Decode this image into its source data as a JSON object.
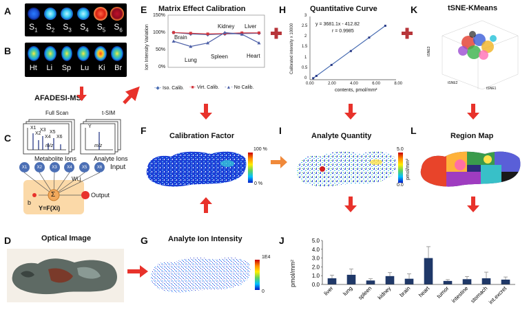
{
  "panels": {
    "A": {
      "label": "A",
      "samples": [
        "S1",
        "S2",
        "S3",
        "S4",
        "S5",
        "S6"
      ],
      "sub_letter": "S",
      "sub_numbers": [
        "1",
        "2",
        "3",
        "4",
        "5",
        "6"
      ]
    },
    "B": {
      "label": "B",
      "organs": [
        "Ht",
        "Li",
        "Sp",
        "Lu",
        "Ki",
        "Br"
      ]
    },
    "afadesi": "AFADESI-MSI",
    "C": {
      "label": "C",
      "full_scan": "Full Scan",
      "tsim": "t-SIM",
      "metabolite_ions": "Metabolite Ions",
      "analyte_ions": "Analyte Ions",
      "mz": "m/z",
      "y_axis": "Y",
      "ion_labels": [
        "X1",
        "X2",
        "X3",
        "X4",
        "X5",
        "X6"
      ],
      "input": "Input",
      "weight": "Wi,j",
      "bias": "b",
      "sum": "Σ",
      "function": "Y=F(Xi)",
      "output": "Output"
    },
    "D": {
      "label": "D",
      "title": "Optical Image"
    },
    "E": {
      "label": "E",
      "title": "Matrix Effect Calibration",
      "ylabel": "Ion Intensity Variation",
      "yticks": [
        "150%",
        "100%",
        "50%",
        "0%"
      ],
      "annotations": [
        "Brain",
        "Lung",
        "Spleen",
        "Kidney",
        "Liver",
        "Heart"
      ],
      "legend": [
        "Iso. Calib.",
        "Virt. Calib.",
        "No Calib."
      ]
    },
    "F": {
      "label": "F",
      "title": "Calibration Factor",
      "scale_max": "100 %",
      "scale_min": "0 %"
    },
    "G": {
      "label": "G",
      "title": "Analyte Ion Intensity",
      "scale_max": "1E4",
      "scale_min": "0"
    },
    "H": {
      "label": "H",
      "title": "Quantitative Curve",
      "equation": "y = 3681.1x - 412.82",
      "r": "r = 0.9985",
      "ylabel": "Calibrated intensity",
      "ymult": "x 10000",
      "xlabel": "contents, pmol/mm²",
      "yticks": [
        "3",
        "2.5",
        "2",
        "1.5",
        "1",
        "0.5",
        "0"
      ],
      "xticks": [
        "0.00",
        "2.00",
        "4.00",
        "6.00",
        "8.00"
      ]
    },
    "I": {
      "label": "I",
      "title": "Analyte Quantity",
      "scale_max": "5.0",
      "scale_min": "0.0",
      "unit": "pmol/mm²"
    },
    "J": {
      "label": "J"
    },
    "K": {
      "label": "K",
      "title": "tSNE-KMeans",
      "axis1": "tSNE1",
      "axis2": "tSNE2",
      "axis3": "tSNE3"
    },
    "L": {
      "label": "L",
      "title": "Region Map"
    }
  },
  "colors": {
    "arrow": "#e8322b",
    "orange_arrow": "#f0893a",
    "plus": "#b7353a",
    "bar": "#1f3868",
    "line_iso": "#4a6eb3",
    "line_virt": "#d2373f",
    "line_no": "#4c5fa7"
  },
  "chart_data": [
    {
      "type": "line",
      "title": "Matrix Effect Calibration",
      "ylabel": "Ion Intensity Variation",
      "categories": [
        "Brain",
        "Lung",
        "Spleen",
        "Kidney",
        "Liver",
        "Heart"
      ],
      "ylim": [
        0,
        150
      ],
      "series": [
        {
          "name": "Iso. Calib.",
          "values": [
            100,
            96,
            94,
            96,
            97,
            98
          ]
        },
        {
          "name": "Virt. Calib.",
          "values": [
            100,
            98,
            96,
            97,
            99,
            99
          ]
        },
        {
          "name": "No Calib.",
          "values": [
            75,
            60,
            70,
            100,
            95,
            70
          ]
        }
      ]
    },
    {
      "type": "scatter",
      "title": "Quantitative Curve",
      "xlabel": "contents, pmol/mm²",
      "ylabel": "Calibrated intensity x 10000",
      "xlim": [
        0,
        8
      ],
      "ylim": [
        0,
        3
      ],
      "x": [
        0.3,
        0.6,
        2.0,
        3.8,
        5.5,
        7.0
      ],
      "y": [
        0.07,
        0.18,
        0.7,
        1.36,
        2.0,
        2.56
      ],
      "fit": {
        "slope": 3681.1,
        "intercept": -412.82,
        "r": 0.9985
      }
    },
    {
      "type": "bar",
      "title": "",
      "ylabel": "pmol/mm²",
      "categories": [
        "liver",
        "lung",
        "spleen",
        "kidney",
        "brain",
        "heart",
        "tumor",
        "intestine",
        "stomach",
        "int.excret"
      ],
      "values": [
        0.7,
        1.1,
        0.45,
        0.95,
        0.65,
        3.0,
        0.4,
        0.6,
        0.7,
        0.55
      ],
      "errors": [
        0.35,
        0.65,
        0.2,
        0.4,
        0.55,
        1.3,
        0.15,
        0.3,
        0.7,
        0.3
      ],
      "ylim": [
        0,
        5.0
      ],
      "yticks": [
        "5.0",
        "4.0",
        "3.0",
        "2.0",
        "1.0",
        "0.0"
      ]
    }
  ]
}
